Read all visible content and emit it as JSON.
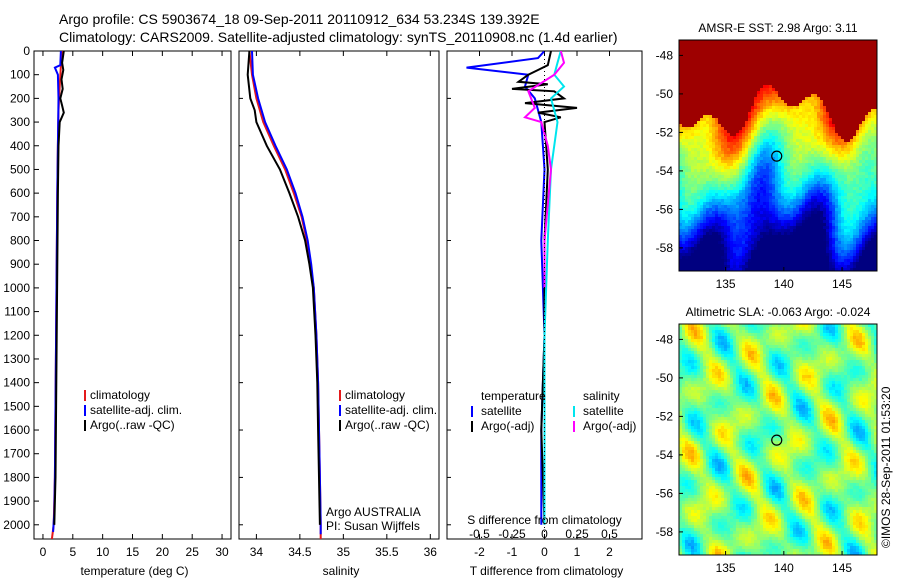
{
  "header": {
    "line1": "Argo profile: CS 5903674_18 09-Sep-2011 20110912_634 53.234S 139.392E",
    "line2": "Climatology: CARS2009. Satellite-adjusted climatology: synTS_20110908.nc (1.4d earlier)"
  },
  "side_caption": "©IMOS 28-Sep-2011 01:53:20",
  "colors": {
    "climatology": "#e41a1c",
    "satellite": "#0000ff",
    "argo": "#000000",
    "cyan": "#00e5ee",
    "magenta": "#ff00ff"
  },
  "chart_data": [
    {
      "type": "line",
      "id": "temperature",
      "xlabel": "temperature (deg C)",
      "ylabel": "",
      "xlim": [
        -1.5,
        31.5
      ],
      "ylim": [
        2060,
        0
      ],
      "xticks": [
        0,
        5,
        10,
        15,
        20,
        25,
        30
      ],
      "xtick_labels": [
        "0",
        "5",
        "10",
        "15",
        "20",
        "25",
        "30"
      ],
      "yticks": [
        0,
        100,
        200,
        300,
        400,
        500,
        600,
        700,
        800,
        900,
        1000,
        1100,
        1200,
        1300,
        1400,
        1500,
        1600,
        1700,
        1800,
        1900,
        2000
      ],
      "ytick_labels": [
        "0",
        "100",
        "200",
        "300",
        "400",
        "500",
        "600",
        "700",
        "800",
        "900",
        "1000",
        "1100",
        "1200",
        "1300",
        "1400",
        "1500",
        "1600",
        "1700",
        "1800",
        "1900",
        "2000"
      ],
      "legend": {
        "position": "lower-middle",
        "entries": [
          "climatology",
          "satellite-adj. clim.",
          "Argo(..raw -QC)"
        ]
      },
      "series": [
        {
          "name": "climatology",
          "color": "#e41a1c",
          "points": [
            [
              3.3,
              0
            ],
            [
              3.0,
              60
            ],
            [
              2.8,
              150
            ],
            [
              2.6,
              250
            ],
            [
              2.5,
              400
            ],
            [
              2.4,
              600
            ],
            [
              2.3,
              900
            ],
            [
              2.2,
              1200
            ],
            [
              2.1,
              1500
            ],
            [
              2.0,
              1800
            ],
            [
              1.8,
              2000
            ],
            [
              1.5,
              2060
            ]
          ]
        },
        {
          "name": "satellite-adj. clim.",
          "color": "#0000ff",
          "points": [
            [
              3.0,
              0
            ],
            [
              2.9,
              60
            ],
            [
              2.0,
              70
            ],
            [
              2.5,
              100
            ],
            [
              2.6,
              200
            ],
            [
              2.5,
              400
            ],
            [
              2.4,
              600
            ],
            [
              2.3,
              900
            ],
            [
              2.2,
              1200
            ],
            [
              2.1,
              1500
            ],
            [
              2.0,
              1800
            ],
            [
              1.9,
              1950
            ],
            [
              1.7,
              2030
            ]
          ]
        },
        {
          "name": "Argo(..raw -QC)",
          "color": "#000000",
          "points": [
            [
              3.5,
              0
            ],
            [
              3.2,
              50
            ],
            [
              3.4,
              80
            ],
            [
              3.1,
              120
            ],
            [
              3.3,
              160
            ],
            [
              2.9,
              200
            ],
            [
              3.2,
              230
            ],
            [
              3.5,
              260
            ],
            [
              2.8,
              300
            ],
            [
              2.6,
              400
            ],
            [
              2.5,
              600
            ],
            [
              2.4,
              900
            ],
            [
              2.3,
              1200
            ],
            [
              2.2,
              1500
            ],
            [
              2.1,
              1800
            ],
            [
              1.9,
              2000
            ]
          ]
        }
      ]
    },
    {
      "type": "line",
      "id": "salinity",
      "xlabel": "salinity",
      "xlim": [
        33.8,
        36.1
      ],
      "ylim": [
        2060,
        0
      ],
      "xticks": [
        34,
        34.5,
        35,
        35.5,
        36
      ],
      "xtick_labels": [
        "34",
        "34.5",
        "35",
        "35.5",
        "36"
      ],
      "legend": {
        "position": "lower-right",
        "entries": [
          "climatology",
          "satellite-adj. clim.",
          "Argo(..raw -QC)"
        ]
      },
      "annotation": [
        "Argo AUSTRALIA",
        "PI: Susan Wijffels"
      ],
      "series": [
        {
          "name": "climatology",
          "color": "#e41a1c",
          "points": [
            [
              33.92,
              0
            ],
            [
              33.95,
              100
            ],
            [
              34.0,
              200
            ],
            [
              34.08,
              300
            ],
            [
              34.2,
              400
            ],
            [
              34.33,
              500
            ],
            [
              34.43,
              600
            ],
            [
              34.52,
              700
            ],
            [
              34.58,
              800
            ],
            [
              34.62,
              900
            ],
            [
              34.66,
              1000
            ],
            [
              34.69,
              1200
            ],
            [
              34.71,
              1400
            ],
            [
              34.72,
              1600
            ],
            [
              34.73,
              1800
            ],
            [
              34.74,
              2000
            ],
            [
              34.74,
              2060
            ]
          ]
        },
        {
          "name": "satellite-adj. clim.",
          "color": "#0000ff",
          "points": [
            [
              33.95,
              0
            ],
            [
              33.96,
              100
            ],
            [
              34.02,
              200
            ],
            [
              34.1,
              300
            ],
            [
              34.22,
              400
            ],
            [
              34.35,
              500
            ],
            [
              34.45,
              600
            ],
            [
              34.53,
              700
            ],
            [
              34.59,
              800
            ],
            [
              34.63,
              900
            ],
            [
              34.66,
              1000
            ],
            [
              34.69,
              1200
            ],
            [
              34.71,
              1400
            ],
            [
              34.72,
              1600
            ],
            [
              34.73,
              1800
            ],
            [
              34.74,
              2000
            ],
            [
              34.74,
              2040
            ]
          ]
        },
        {
          "name": "Argo(..raw -QC)",
          "color": "#000000",
          "points": [
            [
              33.92,
              0
            ],
            [
              33.9,
              100
            ],
            [
              33.93,
              200
            ],
            [
              33.98,
              250
            ],
            [
              34.0,
              300
            ],
            [
              34.12,
              400
            ],
            [
              34.27,
              500
            ],
            [
              34.38,
              600
            ],
            [
              34.48,
              700
            ],
            [
              34.56,
              800
            ],
            [
              34.61,
              900
            ],
            [
              34.65,
              1000
            ],
            [
              34.68,
              1200
            ],
            [
              34.7,
              1400
            ],
            [
              34.71,
              1600
            ],
            [
              34.72,
              1800
            ],
            [
              34.73,
              2000
            ]
          ]
        }
      ]
    },
    {
      "type": "line",
      "id": "differences",
      "xlabel": "T difference from climatology",
      "top_axis_label": "S difference from climatology",
      "xlim": [
        -3,
        3
      ],
      "ylim": [
        2060,
        0
      ],
      "xticks": [
        -2,
        -1,
        0,
        1,
        2
      ],
      "xtick_labels": [
        "-2",
        "-1",
        "0",
        "1",
        "2"
      ],
      "top_ticks": [
        "-0.5",
        "-0.25",
        "0",
        "0.25",
        "0.5"
      ],
      "legend": {
        "position": "lower-middle",
        "groups": [
          {
            "title": "temperature",
            "entries": [
              "satellite",
              "Argo(-adj)"
            ]
          },
          {
            "title": "salinity",
            "entries": [
              "satellite",
              "Argo(-adj)"
            ]
          }
        ]
      },
      "series": [
        {
          "name": "T satellite",
          "color": "#0000ff",
          "points": [
            [
              0,
              0
            ],
            [
              -0.2,
              30
            ],
            [
              -2.4,
              70
            ],
            [
              -0.5,
              100
            ],
            [
              -0.6,
              150
            ],
            [
              -0.3,
              200
            ],
            [
              -0.1,
              300
            ],
            [
              0.0,
              500
            ],
            [
              -0.1,
              800
            ],
            [
              0.0,
              1200
            ],
            [
              -0.1,
              1600
            ],
            [
              -0.1,
              2000
            ]
          ]
        },
        {
          "name": "T Argo(-adj)",
          "color": "#000000",
          "points": [
            [
              0.2,
              0
            ],
            [
              0.1,
              60
            ],
            [
              -0.2,
              80
            ],
            [
              -0.5,
              100
            ],
            [
              -0.8,
              130
            ],
            [
              0.1,
              140
            ],
            [
              -1.0,
              160
            ],
            [
              0.3,
              170
            ],
            [
              0.6,
              200
            ],
            [
              -0.6,
              220
            ],
            [
              1.0,
              240
            ],
            [
              -0.2,
              260
            ],
            [
              0.5,
              280
            ],
            [
              0.0,
              300
            ],
            [
              0.1,
              500
            ],
            [
              0.0,
              800
            ],
            [
              0.0,
              1200
            ],
            [
              -0.1,
              1600
            ],
            [
              0.0,
              2000
            ]
          ]
        },
        {
          "name": "S satellite",
          "color": "#00e5ee",
          "points": [
            [
              0.5,
              0
            ],
            [
              0.4,
              50
            ],
            [
              0.3,
              100
            ],
            [
              0.6,
              150
            ],
            [
              0.2,
              200
            ],
            [
              0.4,
              300
            ],
            [
              0.2,
              500
            ],
            [
              0.1,
              800
            ],
            [
              0.0,
              1200
            ],
            [
              0.0,
              1600
            ],
            [
              0.0,
              2000
            ]
          ]
        },
        {
          "name": "S Argo(-adj)",
          "color": "#ff00ff",
          "points": [
            [
              0.5,
              0
            ],
            [
              0.6,
              50
            ],
            [
              0.3,
              100
            ],
            [
              -0.5,
              170
            ],
            [
              -0.3,
              240
            ],
            [
              -0.6,
              280
            ],
            [
              -0.1,
              300
            ],
            [
              0.1,
              400
            ],
            [
              0.2,
              500
            ],
            [
              0.0,
              800
            ],
            [
              0.0,
              1000
            ]
          ]
        }
      ]
    },
    {
      "type": "heatmap",
      "id": "sst-map",
      "title": "AMSR-E SST: 2.98  Argo: 3.11",
      "xlim": [
        131,
        148
      ],
      "ylim": [
        -59.2,
        -47.2
      ],
      "xticks": [
        135,
        140,
        145
      ],
      "xtick_labels": [
        "135",
        "140",
        "145"
      ],
      "yticks": [
        -48,
        -50,
        -52,
        -54,
        -56,
        -58
      ],
      "ytick_labels": [
        "-48",
        "-50",
        "-52",
        "-54",
        "-56",
        "-58"
      ],
      "marker": {
        "lon": 139.392,
        "lat": -53.234
      }
    },
    {
      "type": "heatmap",
      "id": "sla-map",
      "title": "Altimetric SLA: -0.063  Argo: -0.024",
      "xlim": [
        131,
        148
      ],
      "ylim": [
        -59.2,
        -47.2
      ],
      "xticks": [
        135,
        140,
        145
      ],
      "xtick_labels": [
        "135",
        "140",
        "145"
      ],
      "yticks": [
        -48,
        -50,
        -52,
        -54,
        -56,
        -58
      ],
      "ytick_labels": [
        "-48",
        "-50",
        "-52",
        "-54",
        "-56",
        "-58"
      ],
      "marker": {
        "lon": 139.392,
        "lat": -53.234
      }
    }
  ]
}
